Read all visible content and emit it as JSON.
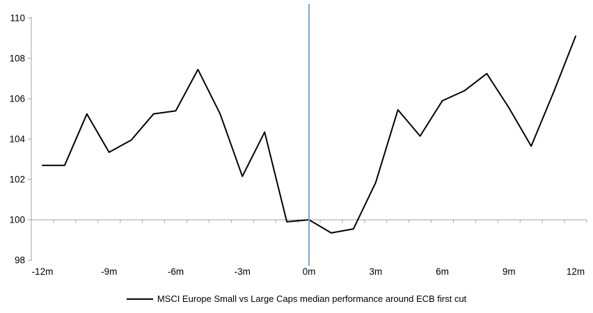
{
  "chart_data": {
    "type": "line",
    "title": "",
    "xlabel": "",
    "ylabel": "",
    "x_months": [
      -12,
      -11,
      -10,
      -9,
      -8,
      -7,
      -6,
      -5,
      -4,
      -3,
      -2,
      -1,
      0,
      1,
      2,
      3,
      4,
      5,
      6,
      7,
      8,
      9,
      10,
      11,
      12
    ],
    "series": [
      {
        "name": "MSCI Europe Small vs Large Caps median performance around ECB first cut",
        "color": "#000000",
        "values": [
          102.7,
          102.7,
          105.25,
          103.35,
          103.95,
          105.25,
          105.4,
          107.45,
          105.25,
          102.15,
          104.35,
          99.9,
          100.0,
          99.35,
          99.55,
          101.85,
          105.45,
          104.15,
          105.9,
          106.4,
          107.25,
          105.55,
          103.65,
          106.3,
          109.1
        ]
      }
    ],
    "ylim": [
      98,
      110
    ],
    "y_ticks": [
      98,
      100,
      102,
      104,
      106,
      108,
      110
    ],
    "x_ticks": [
      {
        "month": -12,
        "label": "-12m"
      },
      {
        "month": -9,
        "label": "-9m"
      },
      {
        "month": -6,
        "label": "-6m"
      },
      {
        "month": -3,
        "label": "-3m"
      },
      {
        "month": 0,
        "label": "0m"
      },
      {
        "month": 3,
        "label": "3m"
      },
      {
        "month": 6,
        "label": "6m"
      },
      {
        "month": 9,
        "label": "9m"
      },
      {
        "month": 12,
        "label": "12m"
      }
    ],
    "baseline_value": 100,
    "event_line_month": 0,
    "grid": "baseline-only",
    "legend_position": "bottom-center",
    "colors": {
      "series_line": "#000000",
      "event_line": "#7BA7D7",
      "axis_gray": "#A0A0A0",
      "label_color": "#000000"
    }
  }
}
